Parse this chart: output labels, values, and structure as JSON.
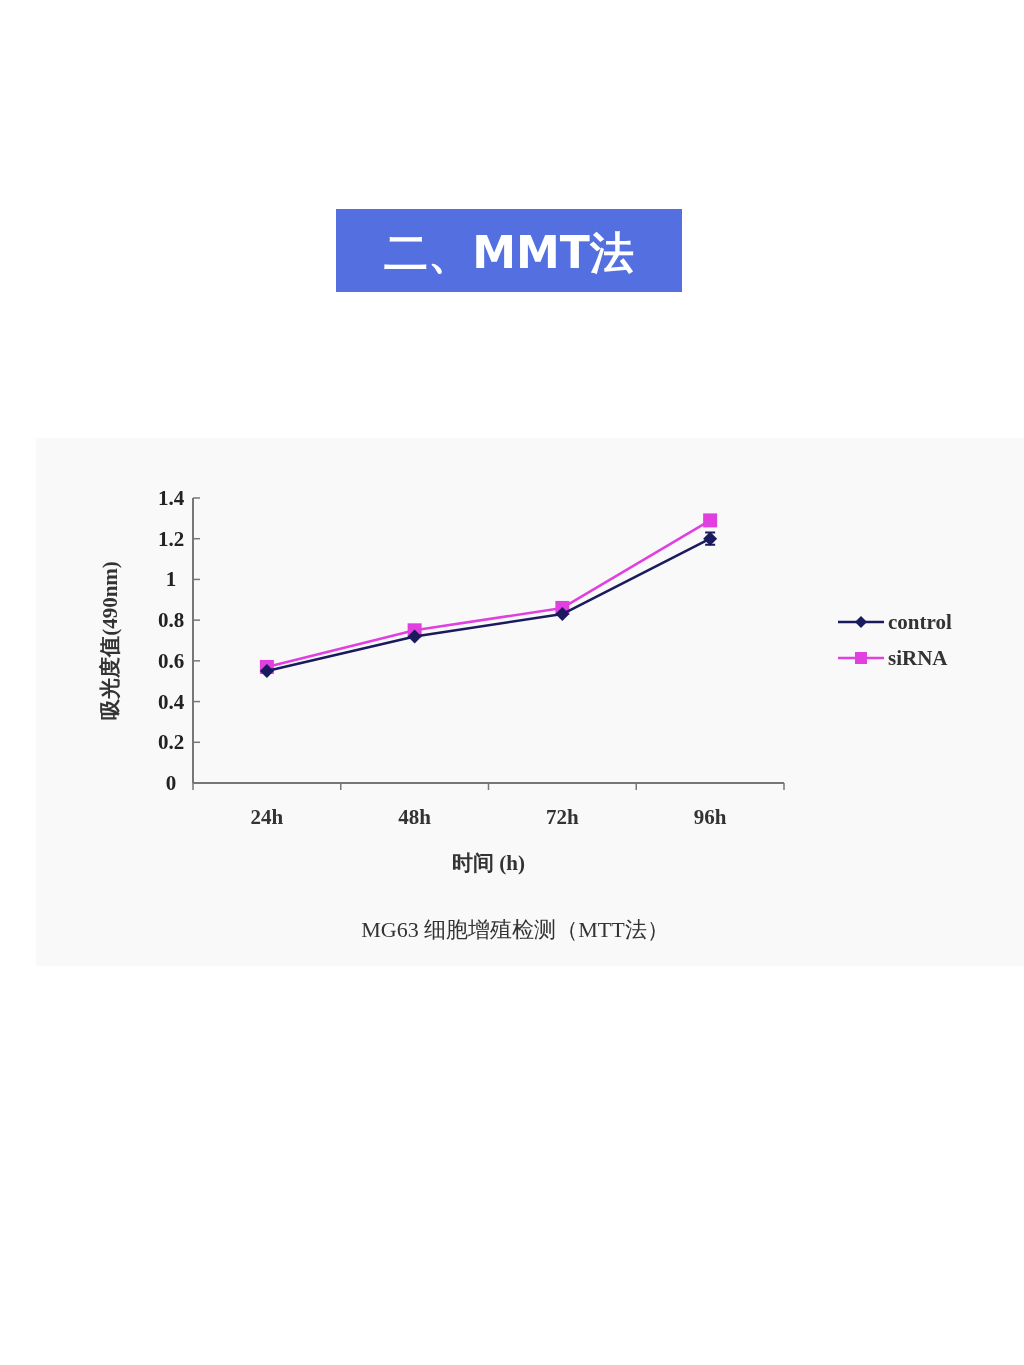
{
  "chart_data": {
    "type": "line",
    "title": "二、MMT法",
    "xlabel": "时间 (h)",
    "ylabel": "吸光度值(490nm)",
    "annotations": [
      "MG63 细胞增殖检测（MTT法）"
    ],
    "categories": [
      "24h",
      "48h",
      "72h",
      "96h"
    ],
    "series": [
      {
        "name": "control",
        "color": "#1a1a5e",
        "marker": "diamond",
        "values": [
          0.55,
          0.72,
          0.83,
          1.2
        ],
        "errors": [
          null,
          null,
          null,
          0.03
        ]
      },
      {
        "name": "siRNA",
        "color": "#e040e0",
        "marker": "square",
        "values": [
          0.57,
          0.75,
          0.86,
          1.29
        ]
      }
    ],
    "ylim": [
      0,
      1.4
    ],
    "yticks": [
      0,
      0.2,
      0.4,
      0.6,
      0.8,
      1,
      1.2,
      1.4
    ],
    "grid": false,
    "legend": "right"
  }
}
